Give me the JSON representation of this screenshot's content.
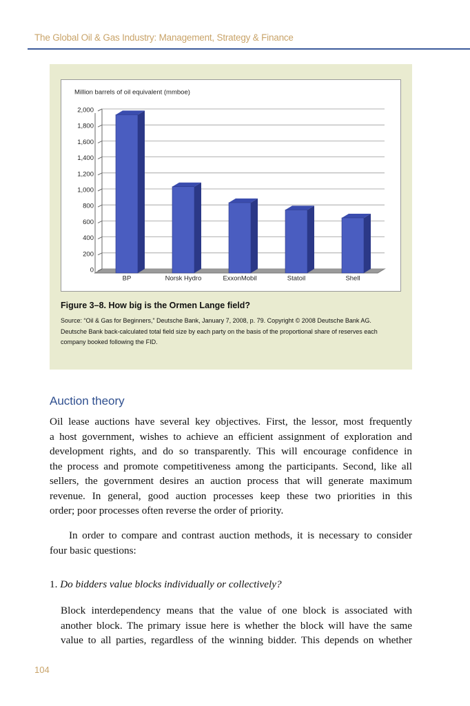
{
  "header": {
    "title": "The Global Oil & Gas Industry: Management, Strategy & Finance"
  },
  "chart_data": {
    "type": "bar3d",
    "title": "Million barrels of oil equivalent (mmboe)",
    "categories": [
      "BP",
      "Norsk Hydro",
      "ExxonMobil",
      "Statoil",
      "Shell"
    ],
    "values": [
      1980,
      1080,
      880,
      790,
      690
    ],
    "color": "#4a5dc0",
    "ylim": [
      0,
      2000
    ],
    "yticks": [
      0,
      200,
      400,
      600,
      800,
      {
        "value": 1000,
        "label": "1,000"
      },
      {
        "value": 1200,
        "label": "1,200"
      },
      {
        "value": 1400,
        "label": "1,400"
      },
      {
        "value": 1600,
        "label": "1,600"
      },
      {
        "value": 1800,
        "label": "1,800"
      },
      {
        "value": 2000,
        "label": "2,000"
      }
    ],
    "grid": true
  },
  "figure": {
    "caption": "Figure 3–8. How big is the Ormen Lange field?",
    "source_lines": [
      "Source: “Oil & Gas for Beginners,” Deutsche Bank, January 7, 2008, p. 79. Copyright © 2008 Deutsche Bank AG.",
      "Deutsche Bank back-calculated total field size by each party on the basis of the proportional share of reserves each",
      "company booked following the FID."
    ]
  },
  "section": {
    "heading": "Auction theory"
  },
  "body": {
    "paragraphs": [
      {
        "lines": [
          "Oil lease auctions have several key objectives. First, the lessor, most frequently",
          "a host government, wishes to achieve an efficient assignment of exploration and",
          "development rights, and do so transparently. This will encourage confidence in",
          "the process and promote competitiveness among the participants. Second, like all",
          "sellers, the government desires an auction process that will generate maximum",
          "revenue. In general, good auction processes keep these two priorities in this",
          "order; poor processes often reverse the order of priority."
        ]
      },
      {
        "lines": [
          "In order to compare and contrast auction methods, it is necessary to consider",
          "four basic questions:"
        ]
      }
    ],
    "item": {
      "number": "1.",
      "text": "Do bidders value blocks individually or collectively?"
    },
    "item_paragraph": {
      "lines": [
        "Block interdependency means that the value of one block is associated with",
        "another block. The primary issue here is whether the block will have the same",
        "value to all parties, regardless of the winning bidder. This depends on whether"
      ]
    }
  },
  "footer": {
    "page_number": "104"
  }
}
